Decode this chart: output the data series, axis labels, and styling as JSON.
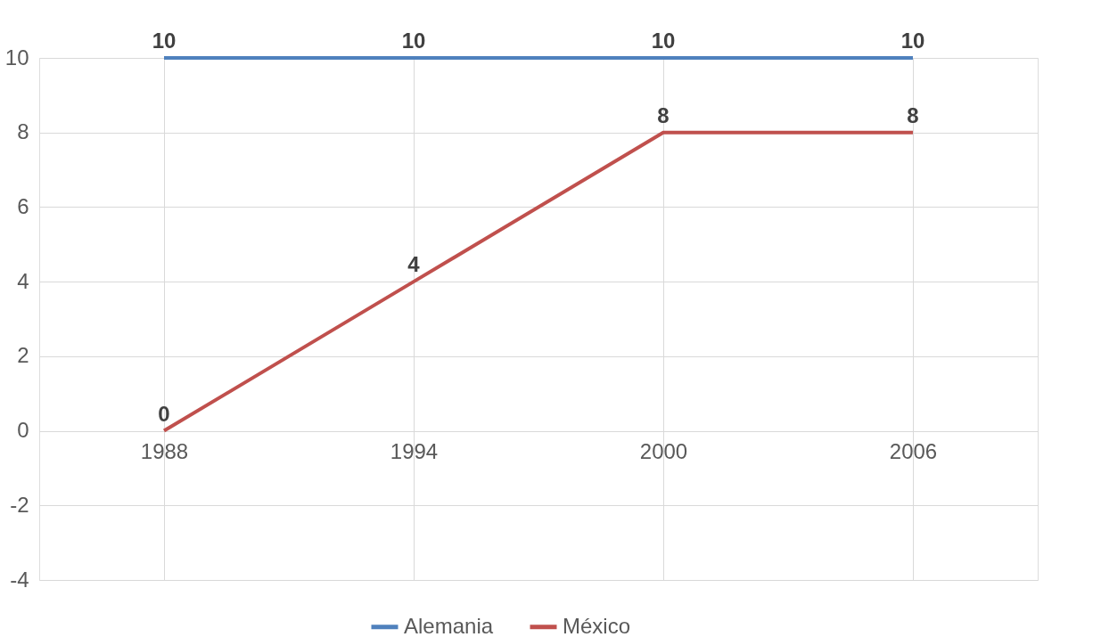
{
  "chart_data": {
    "type": "line",
    "categories": [
      "1988",
      "1994",
      "2000",
      "2006"
    ],
    "series": [
      {
        "name": "Alemania",
        "color": "#4f81bd",
        "values": [
          10,
          10,
          10,
          10
        ]
      },
      {
        "name": "México",
        "color": "#c0504d",
        "values": [
          0,
          4,
          8,
          8
        ]
      }
    ],
    "ylim": [
      -4,
      10
    ],
    "yticks": [
      -4,
      -2,
      0,
      2,
      4,
      6,
      8,
      10
    ],
    "grid": true,
    "legend": "bottom",
    "data_labels": true,
    "marker": "none",
    "line_style": "solid"
  }
}
